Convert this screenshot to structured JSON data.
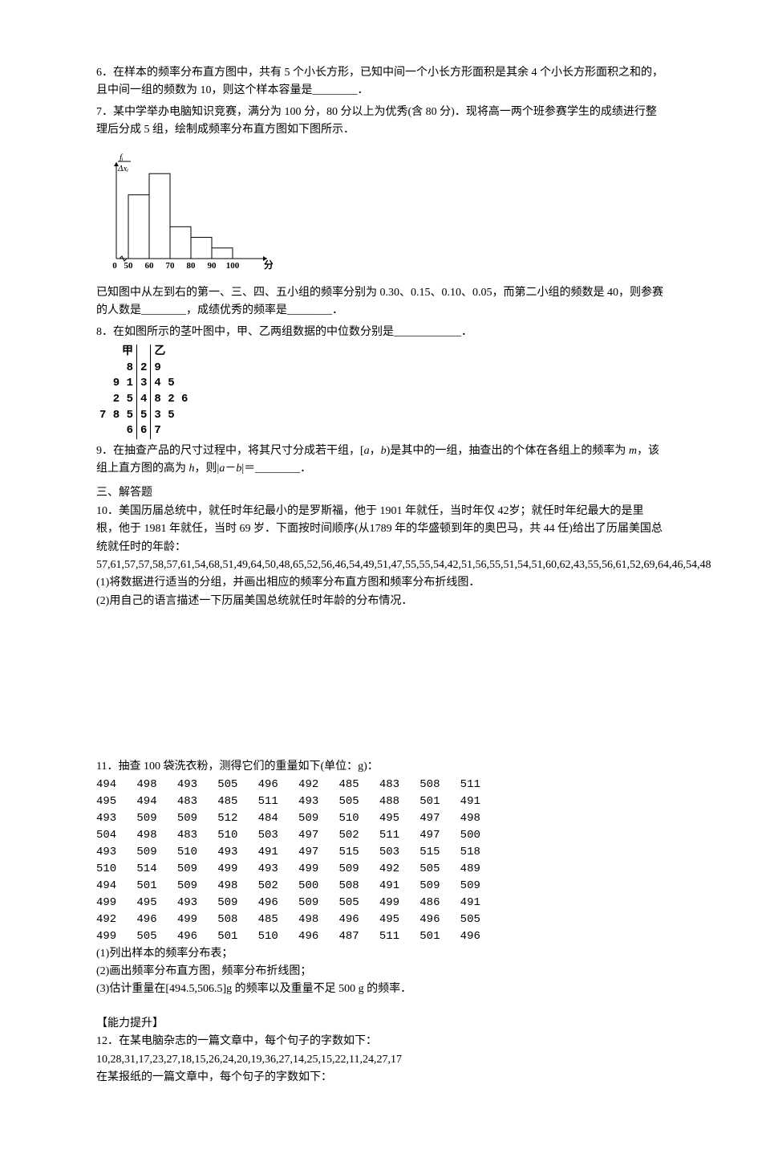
{
  "q6": {
    "text": "6．在样本的频率分布直方图中，共有 5 个小长方形，已知中间一个小长方形面积是其余 4 个小长方形面积之和的，且中间一组的频数为 10，则这个样本容量是________．"
  },
  "q7": {
    "text_a": "7．某中学举办电脑知识竞赛，满分为 100 分，80 分以上为优秀(含 80 分)．现将高一两个班参赛学生的成绩进行整理后分成 5 组，绘制成频率分布直方图如下图所示．",
    "text_b": "已知图中从左到右的第一、三、四、五小组的频率分别为 0.30、0.15、0.10、0.05，而第二小组的频数是 40，则参赛的人数是________，成绩优秀的频率是________．",
    "hist": {
      "xlabel": "分数",
      "ylabel_top": "fᵢ",
      "ylabel_bot": "Δxᵢ",
      "xticks": [
        "0",
        "50",
        "60",
        "70",
        "80",
        "90",
        "100"
      ],
      "bar_heights_rel": [
        0.3,
        0.4,
        0.15,
        0.1,
        0.05
      ],
      "axis_color": "#000000",
      "bar_fill": "#ffffff",
      "bar_stroke": "#000000"
    }
  },
  "q8": {
    "text": "8．在如图所示的茎叶图中，甲、乙两组数据的中位数分别是____________．",
    "header_left": "甲",
    "header_right": "乙",
    "rows": [
      {
        "l": "8",
        "s": "2",
        "r": "9"
      },
      {
        "l": "9  1",
        "s": "3",
        "r": "4  5"
      },
      {
        "l": "2  5",
        "s": "4",
        "r": "8  2  6"
      },
      {
        "l": "7  8  5",
        "s": "5",
        "r": "3  5"
      },
      {
        "l": "6",
        "s": "6",
        "r": "7"
      }
    ]
  },
  "q9": {
    "text_a": "9．在抽查产品的尺寸过程中，将其尺寸分成若干组，[",
    "var_a": "a",
    "text_b": "，",
    "var_b": "b",
    "text_c": ")是其中的一组，抽查出的个体在各组上的频率为 ",
    "var_m": "m",
    "text_d": "，该组上直方图的高为 ",
    "var_h": "h",
    "text_e": "，则|",
    "var_a2": "a",
    "text_f": "－",
    "var_b2": "b",
    "text_g": "|＝________．"
  },
  "section3": "三、解答题",
  "q10": {
    "text_a": "10．美国历届总统中，就任时年纪最小的是罗斯福，他于 1901 年就任，当时年仅 42岁；就任时年纪最大的是里根，他于 1981 年就任，当时 69 岁．下面按时间顺序(从1789 年的华盛顿到年的奥巴马，共 44 任)给出了历届美国总统就任时的年龄：",
    "data": "57,61,57,57,58,57,61,54,68,51,49,64,50,48,65,52,56,46,54,49,51,47,55,55,54,42,51,56,55,51,54,51,60,62,43,55,56,61,52,69,64,46,54,48",
    "sub1": "(1)将数据进行适当的分组，并画出相应的频率分布直方图和频率分布折线图．",
    "sub2": "(2)用自己的语言描述一下历届美国总统就任时年龄的分布情况．"
  },
  "q11": {
    "text": "11．抽查 100 袋洗衣粉，测得它们的重量如下(单位：g)：",
    "rows": [
      "494   498   493   505   496   492   485   483   508   511",
      "495   494   483   485   511   493   505   488   501   491",
      "493   509   509   512   484   509   510   495   497   498",
      "504   498   483   510   503   497   502   511   497   500",
      "493   509   510   493   491   497   515   503   515   518",
      "510   514   509   499   493   499   509   492   505   489",
      "494   501   509   498   502   500   508   491   509   509",
      "499   495   493   509   496   509   505   499   486   491",
      "492   496   499   508   485   498   496   495   496   505",
      "499   505   496   501   510   496   487   511   501   496"
    ],
    "sub1": "(1)列出样本的频率分布表；",
    "sub2": "(2)画出频率分布直方图，频率分布折线图；",
    "sub3": "(3)估计重量在[494.5,506.5]g 的频率以及重量不足 500 g 的频率．"
  },
  "ability_title": "【能力提升】",
  "q12": {
    "text_a": "12．在某电脑杂志的一篇文章中，每个句子的字数如下：",
    "data": "10,28,31,17,23,27,18,15,26,24,20,19,36,27,14,25,15,22,11,24,27,17",
    "text_b": "在某报纸的一篇文章中，每个句子的字数如下："
  }
}
